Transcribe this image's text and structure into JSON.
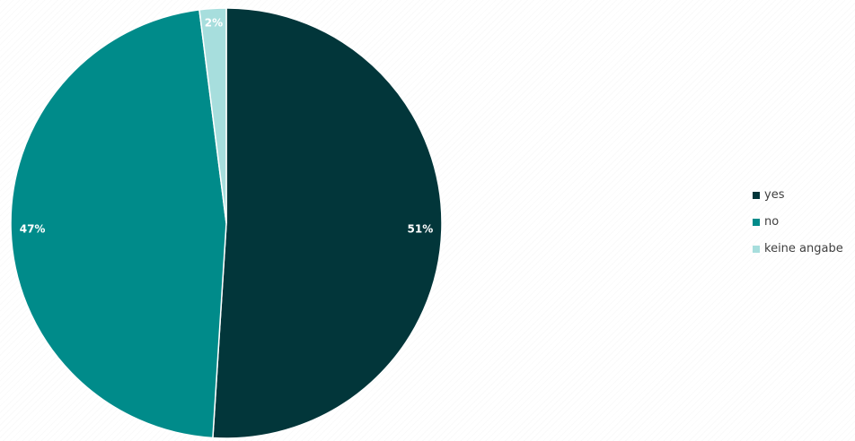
{
  "chart_data": {
    "type": "pie",
    "categories": [
      "yes",
      "no",
      "keine angabe"
    ],
    "values": [
      51,
      47,
      2
    ],
    "labels": [
      "51%",
      "47%",
      "2%"
    ],
    "colors": [
      "#02363a",
      "#008b8a",
      "#a7dedd"
    ],
    "legend_position": "right",
    "title": ""
  }
}
